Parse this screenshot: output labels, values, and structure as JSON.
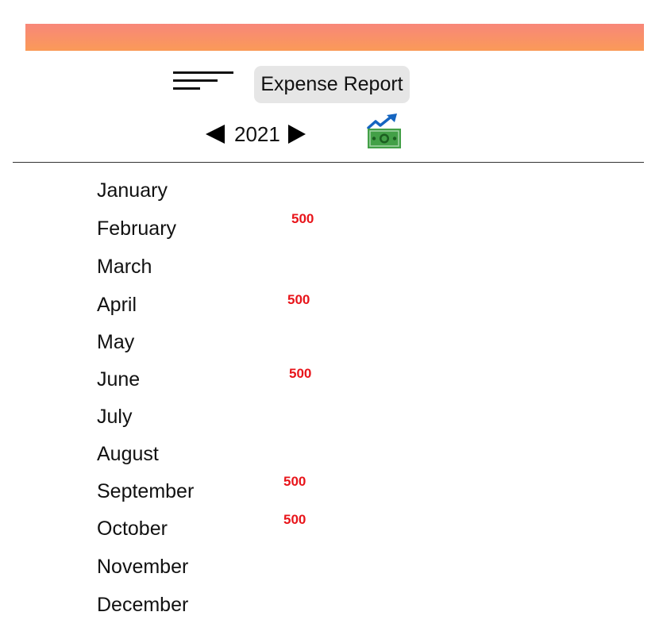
{
  "header": {
    "report_label": "Expense Report"
  },
  "year_nav": {
    "year": "2021"
  },
  "icons": {
    "menu": "hamburger-menu-icon",
    "money": "money-chart-icon",
    "prev": "triangle-left-icon",
    "next": "triangle-right-icon"
  },
  "colors": {
    "header_gradient_top": "#f8877a",
    "header_gradient_bottom": "#fa9a58",
    "amount": "#e8141a",
    "button_bg": "#e6e6e6"
  },
  "months": [
    {
      "name": "January",
      "amount": ""
    },
    {
      "name": "February",
      "amount": "500"
    },
    {
      "name": "March",
      "amount": ""
    },
    {
      "name": "April",
      "amount": "500"
    },
    {
      "name": "May",
      "amount": ""
    },
    {
      "name": "June",
      "amount": "500"
    },
    {
      "name": "July",
      "amount": ""
    },
    {
      "name": "August",
      "amount": ""
    },
    {
      "name": "September",
      "amount": "500"
    },
    {
      "name": "October",
      "amount": "500"
    },
    {
      "name": "November",
      "amount": ""
    },
    {
      "name": "December",
      "amount": ""
    }
  ]
}
